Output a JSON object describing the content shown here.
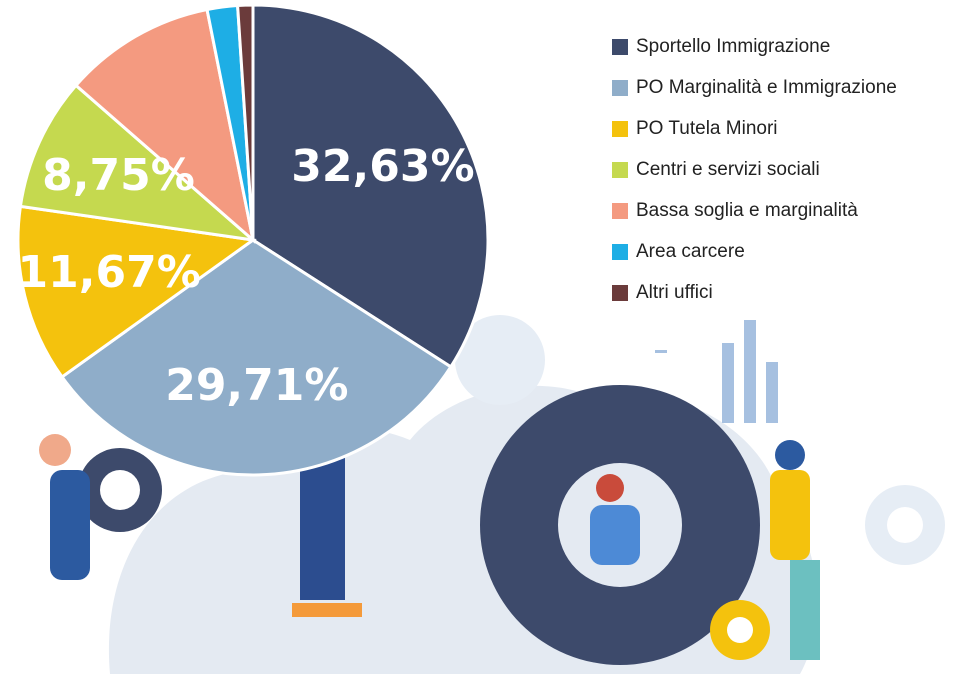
{
  "chart_data": {
    "type": "pie",
    "categories": [
      "Sportello Immigrazione",
      "PO Marginalità e Immigrazione",
      "PO Tutela Minori",
      "Centri e servizi sociali",
      "Bassa soglia e marginalità",
      "Area carcere",
      "Altri uffici"
    ],
    "values": [
      32.63,
      29.71,
      11.67,
      8.75,
      10,
      2,
      1
    ],
    "value_labels": [
      "32,63%",
      "29,71%",
      "11,67%",
      "8,75%",
      null,
      null,
      null
    ],
    "colors": [
      "#3d4a6b",
      "#8fadc9",
      "#f4c20d",
      "#c5d94f",
      "#f49a80",
      "#1eaee5",
      "#6b3b3b"
    ],
    "legend": "top-right"
  }
}
